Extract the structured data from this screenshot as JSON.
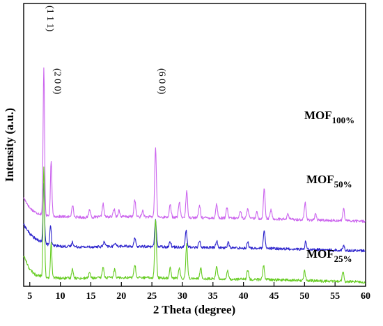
{
  "chart_data": {
    "type": "line",
    "xlabel": "2 Theta (degree)",
    "ylabel": "Intensity (a.u.)",
    "xlim": [
      4,
      60
    ],
    "xticks": [
      5,
      10,
      15,
      20,
      25,
      30,
      35,
      40,
      45,
      50,
      55,
      60
    ],
    "y_ticks_shown": false,
    "grid": false,
    "series": [
      {
        "name": "MOF100%",
        "label_main": "MOF",
        "label_sub": "100%",
        "color": "#cc66ee",
        "baseline": 0.78,
        "background": [
          [
            4,
            0.3
          ],
          [
            5,
            0.17
          ],
          [
            6,
            0.11
          ],
          [
            8,
            0.07
          ],
          [
            10,
            0.06
          ],
          [
            14,
            0.05
          ],
          [
            20,
            0.06
          ],
          [
            30,
            0.05
          ],
          [
            45,
            0.03
          ],
          [
            60,
            0.0
          ]
        ],
        "peaks": [
          [
            7.3,
            1.88
          ],
          [
            8.5,
            0.7
          ],
          [
            12.0,
            0.16
          ],
          [
            14.8,
            0.1
          ],
          [
            17.0,
            0.17
          ],
          [
            18.8,
            0.1
          ],
          [
            19.6,
            0.08
          ],
          [
            22.2,
            0.22
          ],
          [
            23.5,
            0.08
          ],
          [
            25.6,
            0.88
          ],
          [
            28.0,
            0.16
          ],
          [
            29.5,
            0.2
          ],
          [
            30.7,
            0.33
          ],
          [
            32.8,
            0.16
          ],
          [
            35.6,
            0.18
          ],
          [
            37.3,
            0.13
          ],
          [
            39.5,
            0.1
          ],
          [
            40.7,
            0.14
          ],
          [
            42.2,
            0.08
          ],
          [
            43.4,
            0.39
          ],
          [
            44.5,
            0.12
          ],
          [
            47.3,
            0.07
          ],
          [
            50.1,
            0.22
          ],
          [
            51.8,
            0.07
          ],
          [
            56.4,
            0.15
          ]
        ]
      },
      {
        "name": "MOF50%",
        "label_main": "MOF",
        "label_sub": "50%",
        "color": "#2b22cc",
        "baseline": 0.4,
        "background": [
          [
            4,
            0.34
          ],
          [
            5,
            0.22
          ],
          [
            6,
            0.15
          ],
          [
            8,
            0.08
          ],
          [
            10,
            0.06
          ],
          [
            14,
            0.05
          ],
          [
            20,
            0.06
          ],
          [
            30,
            0.05
          ],
          [
            45,
            0.03
          ],
          [
            60,
            0.0
          ]
        ],
        "peaks": [
          [
            7.3,
            0.77
          ],
          [
            8.4,
            0.24
          ],
          [
            12.0,
            0.06
          ],
          [
            17.2,
            0.06
          ],
          [
            19.0,
            0.05
          ],
          [
            22.2,
            0.1
          ],
          [
            25.6,
            0.35
          ],
          [
            28.0,
            0.07
          ],
          [
            30.6,
            0.21
          ],
          [
            32.8,
            0.08
          ],
          [
            35.6,
            0.09
          ],
          [
            37.5,
            0.07
          ],
          [
            40.7,
            0.08
          ],
          [
            43.4,
            0.22
          ],
          [
            50.2,
            0.1
          ],
          [
            56.4,
            0.06
          ]
        ]
      },
      {
        "name": "MOF25%",
        "label_main": "MOF",
        "label_sub": "25%",
        "color": "#66cc22",
        "baseline": 0.0,
        "background": [
          [
            4,
            0.34
          ],
          [
            5,
            0.16
          ],
          [
            6,
            0.09
          ],
          [
            8,
            0.06
          ],
          [
            10,
            0.05
          ],
          [
            14,
            0.05
          ],
          [
            20,
            0.06
          ],
          [
            30,
            0.05
          ],
          [
            45,
            0.03
          ],
          [
            60,
            0.0
          ]
        ],
        "peaks": [
          [
            7.3,
            1.4
          ],
          [
            8.5,
            0.44
          ],
          [
            12.0,
            0.12
          ],
          [
            14.8,
            0.07
          ],
          [
            17.0,
            0.14
          ],
          [
            18.9,
            0.11
          ],
          [
            22.2,
            0.17
          ],
          [
            25.6,
            0.75
          ],
          [
            28.0,
            0.14
          ],
          [
            29.5,
            0.12
          ],
          [
            30.7,
            0.44
          ],
          [
            33.0,
            0.13
          ],
          [
            35.6,
            0.17
          ],
          [
            37.4,
            0.1
          ],
          [
            40.7,
            0.12
          ],
          [
            43.3,
            0.18
          ],
          [
            50.0,
            0.12
          ],
          [
            56.3,
            0.12
          ]
        ]
      }
    ],
    "peak_labels": [
      {
        "text": "(1 1 1)",
        "x": 7.3
      },
      {
        "text": "(2 0 0)",
        "x": 8.5
      },
      {
        "text": "(6 0 0)",
        "x": 25.6
      }
    ]
  }
}
